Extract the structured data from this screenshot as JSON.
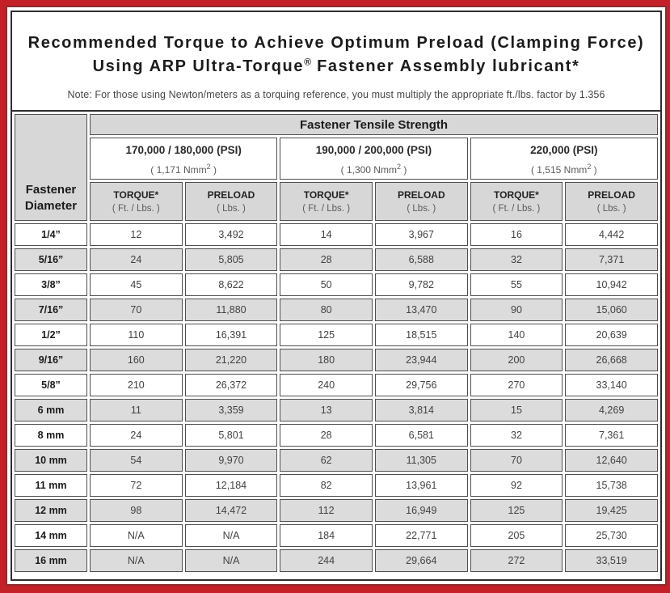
{
  "title": {
    "line1": "Recommended Torque to Achieve Optimum Preload (Clamping Force)",
    "line2_pre": "Using ARP Ultra-Torque",
    "line2_sup": "®",
    "line2_post": " Fastener Assembly lubricant*"
  },
  "note": "Note: For those using Newton/meters as a torquing reference, you must multiply the appropriate ft./lbs. factor by 1.356",
  "table": {
    "tensile_header": "Fastener Tensile Strength",
    "diameter_header_line1": "Fastener",
    "diameter_header_line2": "Diameter",
    "strength_groups": [
      {
        "psi": "170,000 / 180,000 (PSI)",
        "nmm_pre": "( 1,171 Nmm",
        "nmm_sup": "2",
        "nmm_post": " )"
      },
      {
        "psi": "190,000 / 200,000 (PSI)",
        "nmm_pre": "( 1,300 Nmm",
        "nmm_sup": "2",
        "nmm_post": " )"
      },
      {
        "psi": "220,000 (PSI)",
        "nmm_pre": "( 1,515 Nmm",
        "nmm_sup": "2",
        "nmm_post": " )"
      }
    ],
    "col_headers": {
      "torque_label": "TORQUE*",
      "torque_unit": "( Ft. / Lbs. )",
      "preload_label": "PRELOAD",
      "preload_unit": "( Lbs. )"
    },
    "rows": [
      {
        "diameter": "1/4”",
        "values": [
          "12",
          "3,492",
          "14",
          "3,967",
          "16",
          "4,442"
        ]
      },
      {
        "diameter": "5/16”",
        "values": [
          "24",
          "5,805",
          "28",
          "6,588",
          "32",
          "7,371"
        ]
      },
      {
        "diameter": "3/8”",
        "values": [
          "45",
          "8,622",
          "50",
          "9,782",
          "55",
          "10,942"
        ]
      },
      {
        "diameter": "7/16”",
        "values": [
          "70",
          "11,880",
          "80",
          "13,470",
          "90",
          "15,060"
        ]
      },
      {
        "diameter": "1/2”",
        "values": [
          "110",
          "16,391",
          "125",
          "18,515",
          "140",
          "20,639"
        ]
      },
      {
        "diameter": "9/16”",
        "values": [
          "160",
          "21,220",
          "180",
          "23,944",
          "200",
          "26,668"
        ]
      },
      {
        "diameter": "5/8”",
        "values": [
          "210",
          "26,372",
          "240",
          "29,756",
          "270",
          "33,140"
        ]
      },
      {
        "diameter": "6 mm",
        "values": [
          "11",
          "3,359",
          "13",
          "3,814",
          "15",
          "4,269"
        ]
      },
      {
        "diameter": "8 mm",
        "values": [
          "24",
          "5,801",
          "28",
          "6,581",
          "32",
          "7,361"
        ]
      },
      {
        "diameter": "10 mm",
        "values": [
          "54",
          "9,970",
          "62",
          "11,305",
          "70",
          "12,640"
        ]
      },
      {
        "diameter": "11 mm",
        "values": [
          "72",
          "12,184",
          "82",
          "13,961",
          "92",
          "15,738"
        ]
      },
      {
        "diameter": "12 mm",
        "values": [
          "98",
          "14,472",
          "112",
          "16,949",
          "125",
          "19,425"
        ]
      },
      {
        "diameter": "14 mm",
        "values": [
          "N/A",
          "N/A",
          "184",
          "22,771",
          "205",
          "25,730"
        ]
      },
      {
        "diameter": "16 mm",
        "values": [
          "N/A",
          "N/A",
          "244",
          "29,664",
          "272",
          "33,519"
        ]
      }
    ]
  },
  "colors": {
    "frame_red": "#c32027",
    "inner_line_red": "#8c2b2e",
    "header_gray": "#d7d7d7",
    "row_alt_gray": "#dcdcdc"
  }
}
